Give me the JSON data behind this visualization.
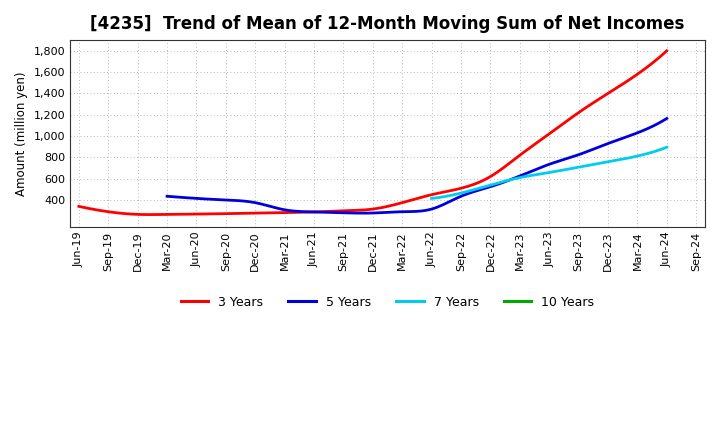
{
  "title": "[4235]  Trend of Mean of 12-Month Moving Sum of Net Incomes",
  "ylabel": "Amount (million yen)",
  "background_color": "#ffffff",
  "plot_bg_color": "#ffffff",
  "grid_color": "#999999",
  "title_fontsize": 12,
  "ylim": [
    150,
    1900
  ],
  "yticks": [
    400,
    600,
    800,
    1000,
    1200,
    1400,
    1600,
    1800
  ],
  "ytick_labels": [
    "400",
    "600",
    "800",
    "1,000",
    "1,200",
    "1,400",
    "1,600",
    "1,800"
  ],
  "series": {
    "3 Years": {
      "color": "#ff0000",
      "y": [
        340,
        290,
        265,
        265,
        268,
        272,
        278,
        282,
        288,
        298,
        315,
        375,
        450,
        510,
        620,
        820,
        1020,
        1220,
        1400,
        1580,
        1800,
        null
      ]
    },
    "5 Years": {
      "color": "#0000dd",
      "y": [
        null,
        null,
        null,
        435,
        415,
        400,
        375,
        308,
        288,
        280,
        278,
        290,
        315,
        435,
        525,
        625,
        735,
        825,
        930,
        1030,
        1165,
        null
      ]
    },
    "7 Years": {
      "color": "#00ccee",
      "y": [
        null,
        null,
        null,
        null,
        null,
        null,
        null,
        null,
        null,
        null,
        null,
        null,
        415,
        465,
        540,
        610,
        658,
        708,
        758,
        812,
        895,
        null
      ]
    },
    "10 Years": {
      "color": "#00aa00",
      "y": [
        null,
        null,
        null,
        null,
        null,
        null,
        null,
        null,
        null,
        null,
        null,
        null,
        null,
        null,
        null,
        null,
        null,
        null,
        null,
        null,
        null,
        null
      ]
    }
  },
  "xtick_labels": [
    "Jun-19",
    "Sep-19",
    "Dec-19",
    "Mar-20",
    "Jun-20",
    "Sep-20",
    "Dec-20",
    "Mar-21",
    "Jun-21",
    "Sep-21",
    "Dec-21",
    "Mar-22",
    "Jun-22",
    "Sep-22",
    "Dec-22",
    "Mar-23",
    "Jun-23",
    "Sep-23",
    "Dec-23",
    "Mar-24",
    "Jun-24",
    "Sep-24"
  ],
  "legend_labels": [
    "3 Years",
    "5 Years",
    "7 Years",
    "10 Years"
  ],
  "legend_colors": [
    "#ff0000",
    "#0000dd",
    "#00ccee",
    "#00aa00"
  ],
  "linewidth": 2.0
}
